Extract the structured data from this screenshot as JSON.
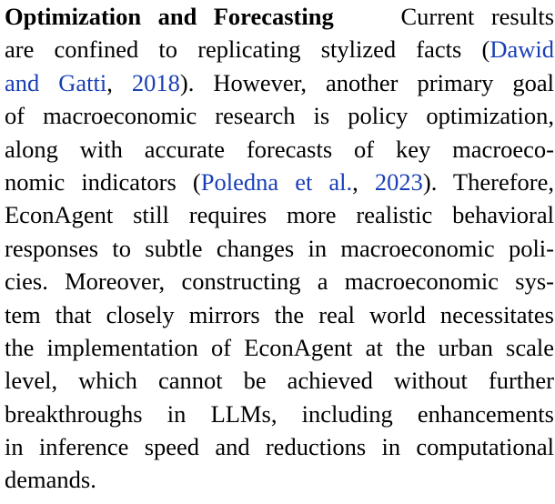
{
  "heading": "Optimization and Forecasting",
  "lines": [
    {
      "segments": [
        {
          "t": "Current results"
        }
      ]
    },
    {
      "segments": [
        {
          "t": "are confined to replicating stylized facts ("
        },
        {
          "t": "Dawid",
          "cite": true
        }
      ]
    },
    {
      "segments": [
        {
          "t": "and Gatti",
          "cite": true
        },
        {
          "t": ", "
        },
        {
          "t": "2018",
          "cite": true
        },
        {
          "t": "). However, another primary goal"
        }
      ]
    },
    {
      "segments": [
        {
          "t": "of macroeconomic research is policy optimization,"
        }
      ]
    },
    {
      "segments": [
        {
          "t": "along with accurate forecasts of key macroeco-"
        }
      ]
    },
    {
      "segments": [
        {
          "t": "nomic indicators ("
        },
        {
          "t": "Poledna et al.",
          "cite": true
        },
        {
          "t": ", "
        },
        {
          "t": "2023",
          "cite": true
        },
        {
          "t": "). Therefore,"
        }
      ]
    },
    {
      "segments": [
        {
          "t": "EconAgent still requires more realistic behavioral"
        }
      ]
    },
    {
      "segments": [
        {
          "t": "responses to subtle changes in macroeconomic poli-"
        }
      ]
    },
    {
      "segments": [
        {
          "t": "cies. Moreover, constructing a macroeconomic sys-"
        }
      ]
    },
    {
      "segments": [
        {
          "t": "tem that closely mirrors the real world necessitates"
        }
      ]
    },
    {
      "segments": [
        {
          "t": "the implementation of EconAgent at the urban scale"
        }
      ]
    },
    {
      "segments": [
        {
          "t": "level, which cannot be achieved without further"
        }
      ]
    },
    {
      "segments": [
        {
          "t": "breakthroughs in LLMs, including enhancements"
        }
      ]
    },
    {
      "segments": [
        {
          "t": "in inference speed and reductions in computational"
        }
      ]
    },
    {
      "segments": [
        {
          "t": "demands."
        }
      ]
    }
  ]
}
